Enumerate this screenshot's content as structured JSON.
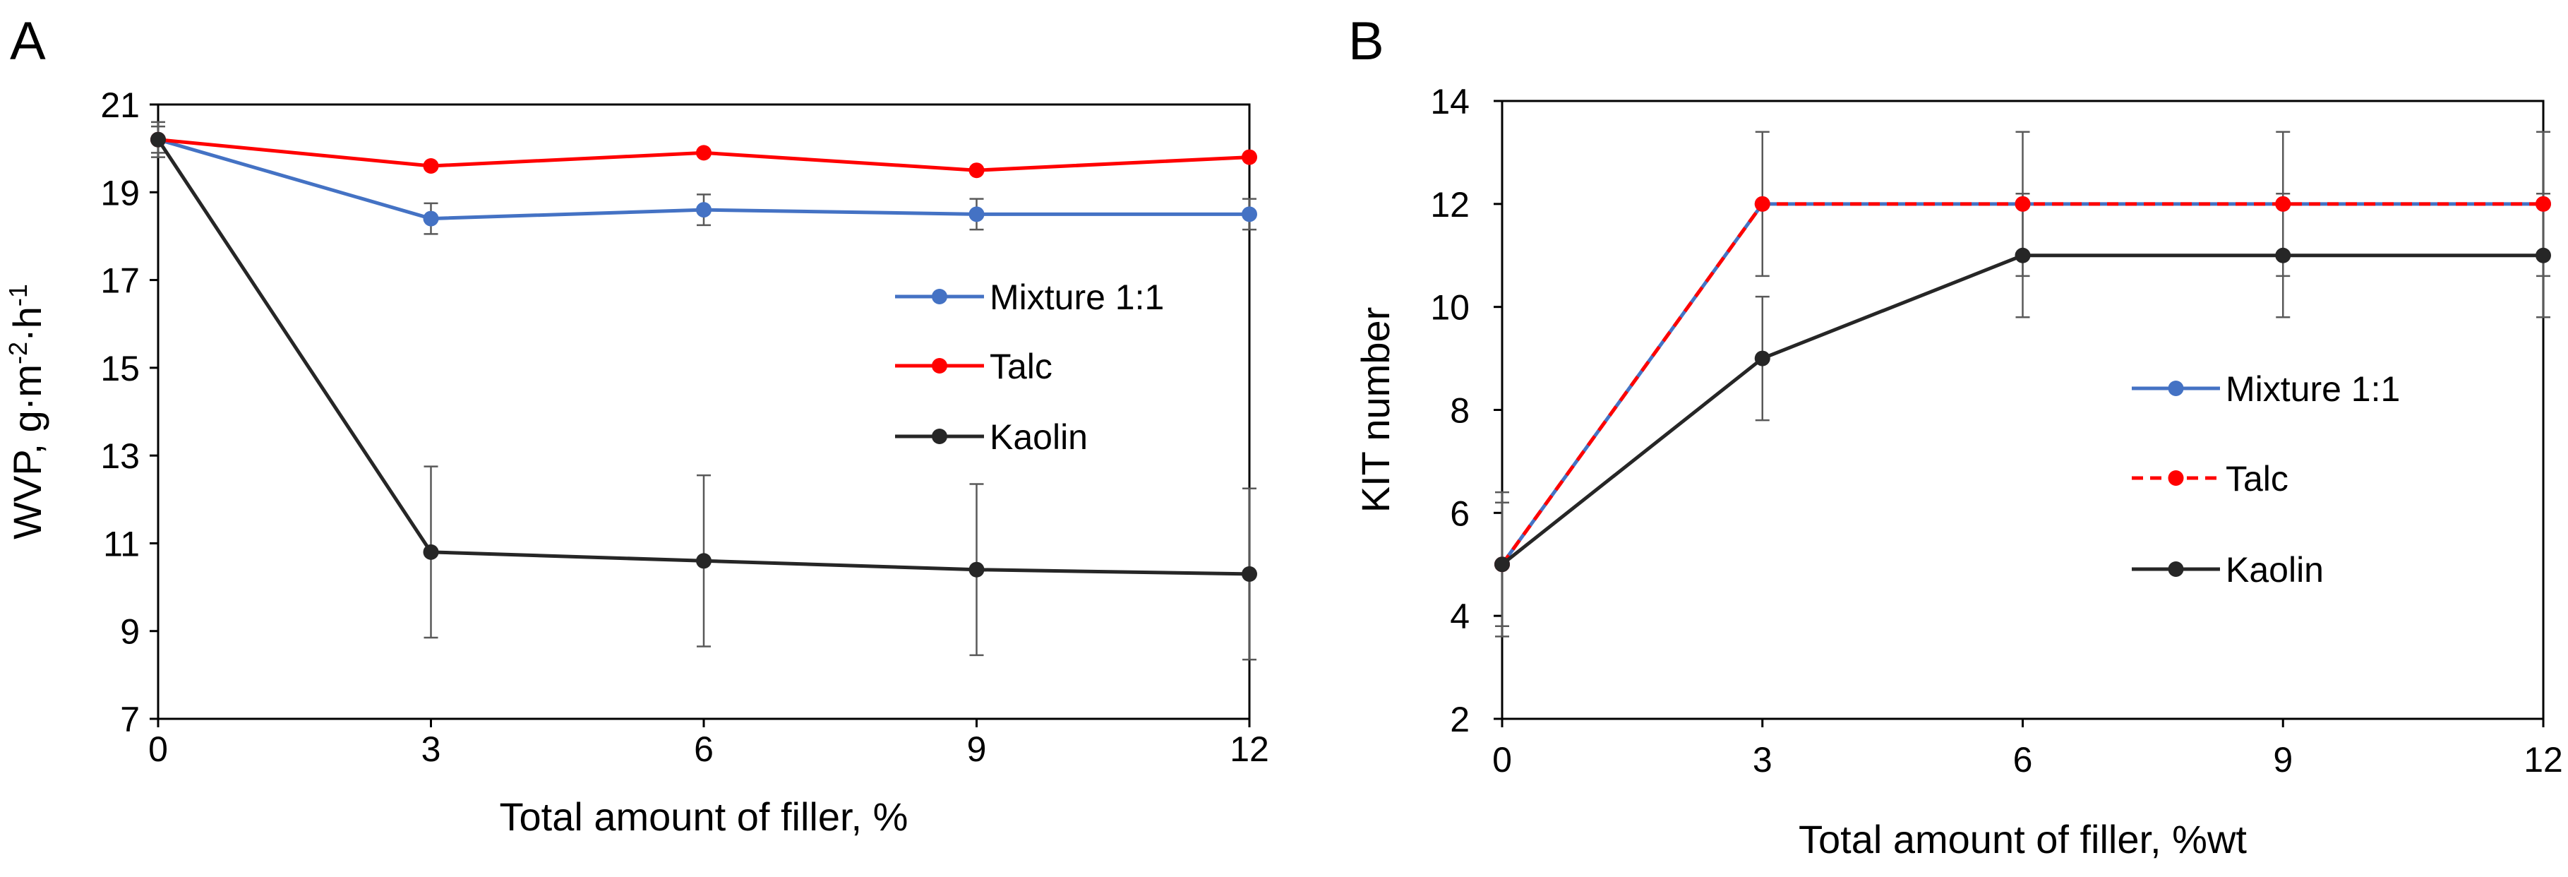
{
  "chart_data": [
    {
      "panel_label": "A",
      "type": "line",
      "title": "",
      "xlabel": "Total amount of filler, %",
      "ylabel": {
        "base": "WVP, g·m",
        "sup1": "-2",
        "mid": "·h",
        "sup2": "-1"
      },
      "x": [
        0,
        3,
        6,
        9,
        12
      ],
      "xlim": [
        0,
        12
      ],
      "xticks": [
        "0",
        "3",
        "6",
        "9",
        "12"
      ],
      "ylim": [
        7,
        21
      ],
      "yticks": [
        "7",
        "9",
        "11",
        "13",
        "15",
        "17",
        "19",
        "21"
      ],
      "grid": false,
      "legend_position": "right-middle",
      "series": [
        {
          "name": "Mixture 1:1",
          "color": "#4472c4",
          "dash": false,
          "values": [
            20.2,
            18.4,
            18.6,
            18.5,
            18.5
          ],
          "errors": [
            0.3,
            0.35,
            0.35,
            0.35,
            0.35
          ]
        },
        {
          "name": "Talc",
          "color": "#ff0000",
          "dash": false,
          "values": [
            20.2,
            19.6,
            19.9,
            19.5,
            19.8
          ],
          "errors": [
            0,
            0,
            0,
            0,
            0
          ]
        },
        {
          "name": "Kaolin",
          "color": "#262626",
          "dash": false,
          "values": [
            20.2,
            10.8,
            10.6,
            10.4,
            10.3
          ],
          "errors": [
            0.4,
            1.95,
            1.95,
            1.95,
            1.95
          ]
        }
      ]
    },
    {
      "panel_label": "B",
      "type": "line",
      "title": "",
      "xlabel": "Total amount of filler, %wt",
      "ylabel": {
        "base": "KIT number"
      },
      "x": [
        0,
        3,
        6,
        9,
        12
      ],
      "xlim": [
        0,
        12
      ],
      "xticks": [
        "0",
        "3",
        "6",
        "9",
        "12"
      ],
      "ylim": [
        2,
        14
      ],
      "yticks": [
        "2",
        "4",
        "6",
        "8",
        "10",
        "12",
        "14"
      ],
      "grid": false,
      "legend_position": "right-middle",
      "series": [
        {
          "name": "Mixture 1:1",
          "color": "#4472c4",
          "dash": false,
          "values": [
            5,
            12,
            12,
            12,
            12
          ],
          "errors": [
            1.4,
            1.4,
            1.4,
            1.4,
            1.4
          ]
        },
        {
          "name": "Talc",
          "color": "#ff0000",
          "dash": true,
          "values": [
            5,
            12,
            12,
            12,
            12
          ],
          "errors": [
            0,
            0,
            0,
            0,
            0
          ]
        },
        {
          "name": "Kaolin",
          "color": "#262626",
          "dash": false,
          "values": [
            5,
            9,
            11,
            11,
            11
          ],
          "errors": [
            1.2,
            1.2,
            1.2,
            1.2,
            1.2
          ]
        }
      ]
    }
  ]
}
